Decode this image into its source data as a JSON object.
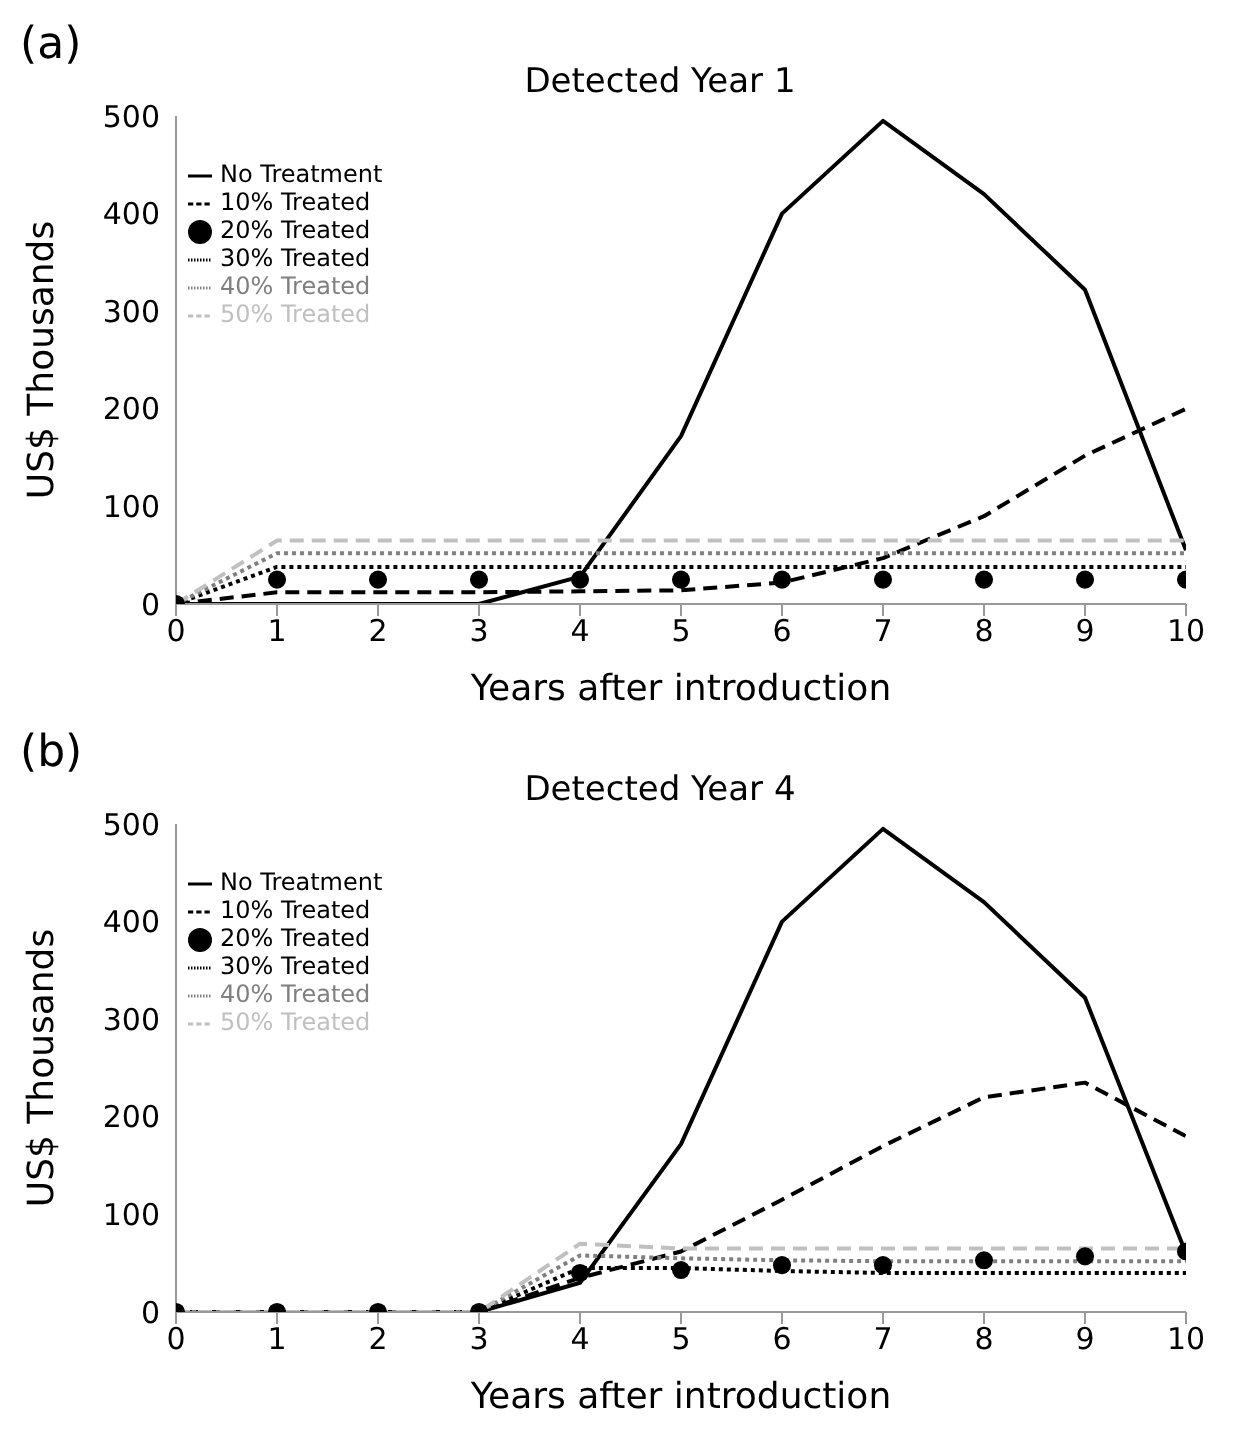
{
  "chart_data": [
    {
      "type": "line",
      "title": "Detected Year 1",
      "xlabel": "Years after introduction",
      "ylabel": "US$ Thousands",
      "annotations": [
        "(a)"
      ],
      "x": [
        0,
        1,
        2,
        3,
        4,
        5,
        6,
        7,
        8,
        9,
        10
      ],
      "xlim": [
        0,
        10
      ],
      "xticks": [
        0,
        1,
        2,
        3,
        4,
        5,
        6,
        7,
        8,
        9,
        10
      ],
      "ylim": [
        0,
        500
      ],
      "yticks": [
        0,
        100,
        200,
        300,
        400,
        500
      ],
      "grid": false,
      "legend": "top left",
      "series": [
        {
          "name": "No Treatment",
          "color": "#000000",
          "line_style": "solid",
          "values": [
            0,
            0,
            0,
            0,
            28,
            172,
            400,
            495,
            420,
            322,
            55
          ]
        },
        {
          "name": "10% Treated",
          "color": "#000000",
          "line_style": "dashed",
          "values": [
            0,
            12,
            12,
            12,
            13,
            14,
            22,
            47,
            90,
            152,
            200
          ]
        },
        {
          "name": "20% Treated",
          "color": "#000000",
          "type": "scatter",
          "marker": "circle",
          "values": [
            0,
            25,
            25,
            25,
            25,
            25,
            25,
            25,
            25,
            25,
            25
          ]
        },
        {
          "name": "30% Treated",
          "color": "#000000",
          "line_style": "dotted",
          "values": [
            0,
            38,
            38,
            38,
            38,
            38,
            38,
            38,
            38,
            38,
            38
          ]
        },
        {
          "name": "40% Treated",
          "color": "#808080",
          "line_style": "dotted",
          "values": [
            0,
            52,
            52,
            52,
            52,
            52,
            52,
            52,
            52,
            52,
            52
          ]
        },
        {
          "name": "50% Treated",
          "color": "#c0c0c0",
          "line_style": "dashed",
          "values": [
            0,
            65,
            65,
            65,
            65,
            65,
            65,
            65,
            65,
            65,
            65
          ]
        }
      ]
    },
    {
      "type": "line",
      "title": "Detected Year 4",
      "xlabel": "Years after introduction",
      "ylabel": "US$ Thousands",
      "annotations": [
        "(b)"
      ],
      "x": [
        0,
        1,
        2,
        3,
        4,
        5,
        6,
        7,
        8,
        9,
        10
      ],
      "xlim": [
        0,
        10
      ],
      "xticks": [
        0,
        1,
        2,
        3,
        4,
        5,
        6,
        7,
        8,
        9,
        10
      ],
      "ylim": [
        0,
        500
      ],
      "yticks": [
        0,
        100,
        200,
        300,
        400,
        500
      ],
      "grid": false,
      "legend": "top left",
      "series": [
        {
          "name": "No Treatment",
          "color": "#000000",
          "line_style": "solid",
          "values": [
            0,
            0,
            0,
            0,
            30,
            172,
            400,
            495,
            420,
            322,
            60
          ]
        },
        {
          "name": "10% Treated",
          "color": "#000000",
          "line_style": "dashed",
          "values": [
            0,
            0,
            0,
            0,
            35,
            62,
            115,
            170,
            220,
            235,
            180
          ]
        },
        {
          "name": "20% Treated",
          "color": "#000000",
          "type": "scatter",
          "marker": "circle",
          "values": [
            0,
            0,
            0,
            0,
            40,
            43,
            48,
            48,
            53,
            57,
            62
          ]
        },
        {
          "name": "30% Treated",
          "color": "#000000",
          "line_style": "dotted",
          "values": [
            0,
            0,
            0,
            0,
            45,
            45,
            42,
            40,
            40,
            40,
            40
          ]
        },
        {
          "name": "40% Treated",
          "color": "#808080",
          "line_style": "dotted",
          "values": [
            0,
            0,
            0,
            0,
            58,
            55,
            53,
            52,
            52,
            52,
            52
          ]
        },
        {
          "name": "50% Treated",
          "color": "#c0c0c0",
          "line_style": "dashed",
          "values": [
            0,
            0,
            0,
            0,
            70,
            65,
            65,
            65,
            65,
            65,
            65
          ]
        }
      ]
    }
  ]
}
